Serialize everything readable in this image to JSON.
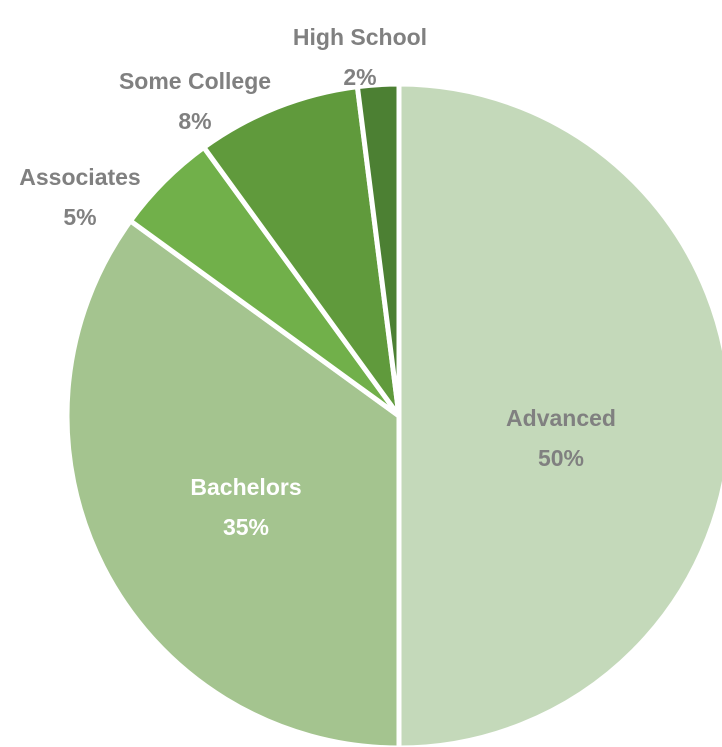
{
  "chart_data": {
    "type": "pie",
    "title": "",
    "slices": [
      {
        "label": "Advanced",
        "value": 50,
        "display": "50%",
        "color": "#c4d9ba",
        "label_color": "#808080",
        "label_placement": "inside"
      },
      {
        "label": "Bachelors",
        "value": 35,
        "display": "35%",
        "color": "#a4c48f",
        "label_color": "#ffffff",
        "label_placement": "inside"
      },
      {
        "label": "Associates",
        "value": 5,
        "display": "5%",
        "color": "#71b04a",
        "label_color": "#808080",
        "label_placement": "outside"
      },
      {
        "label": "Some College",
        "value": 8,
        "display": "8%",
        "color": "#609a3c",
        "label_color": "#808080",
        "label_placement": "outside"
      },
      {
        "label": "High School",
        "value": 2,
        "display": "2%",
        "color": "#4c8033",
        "label_color": "#808080",
        "label_placement": "outside"
      }
    ],
    "start_angle": "12 o'clock",
    "direction": "clockwise",
    "legend": "none"
  }
}
